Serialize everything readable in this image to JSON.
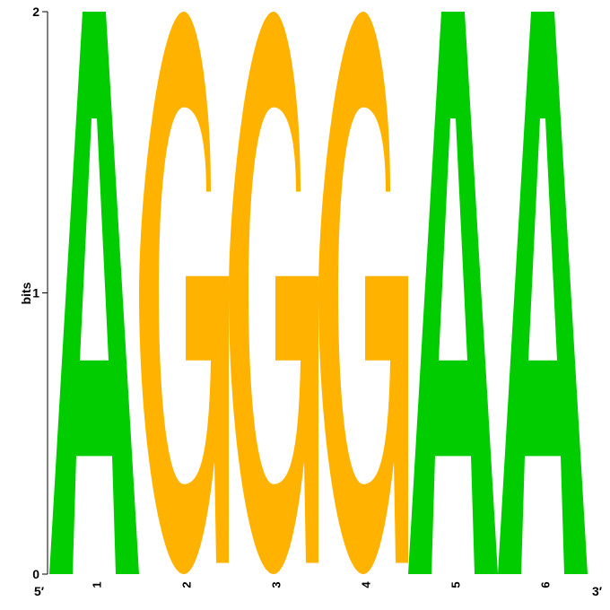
{
  "chart_data": {
    "type": "sequence-logo",
    "ylabel": "bits",
    "ylim": [
      0,
      2
    ],
    "yticks": [
      "0",
      "1",
      "2"
    ],
    "end_labels": {
      "left": "5′",
      "right": "3′"
    },
    "colors": {
      "A": "#00cc00",
      "G": "#ffb300"
    },
    "positions": [
      {
        "label": "1",
        "letter": "A",
        "bits": 2
      },
      {
        "label": "2",
        "letter": "G",
        "bits": 2
      },
      {
        "label": "3",
        "letter": "G",
        "bits": 2
      },
      {
        "label": "4",
        "letter": "G",
        "bits": 2
      },
      {
        "label": "5",
        "letter": "A",
        "bits": 2
      },
      {
        "label": "6",
        "letter": "A",
        "bits": 2
      }
    ]
  }
}
